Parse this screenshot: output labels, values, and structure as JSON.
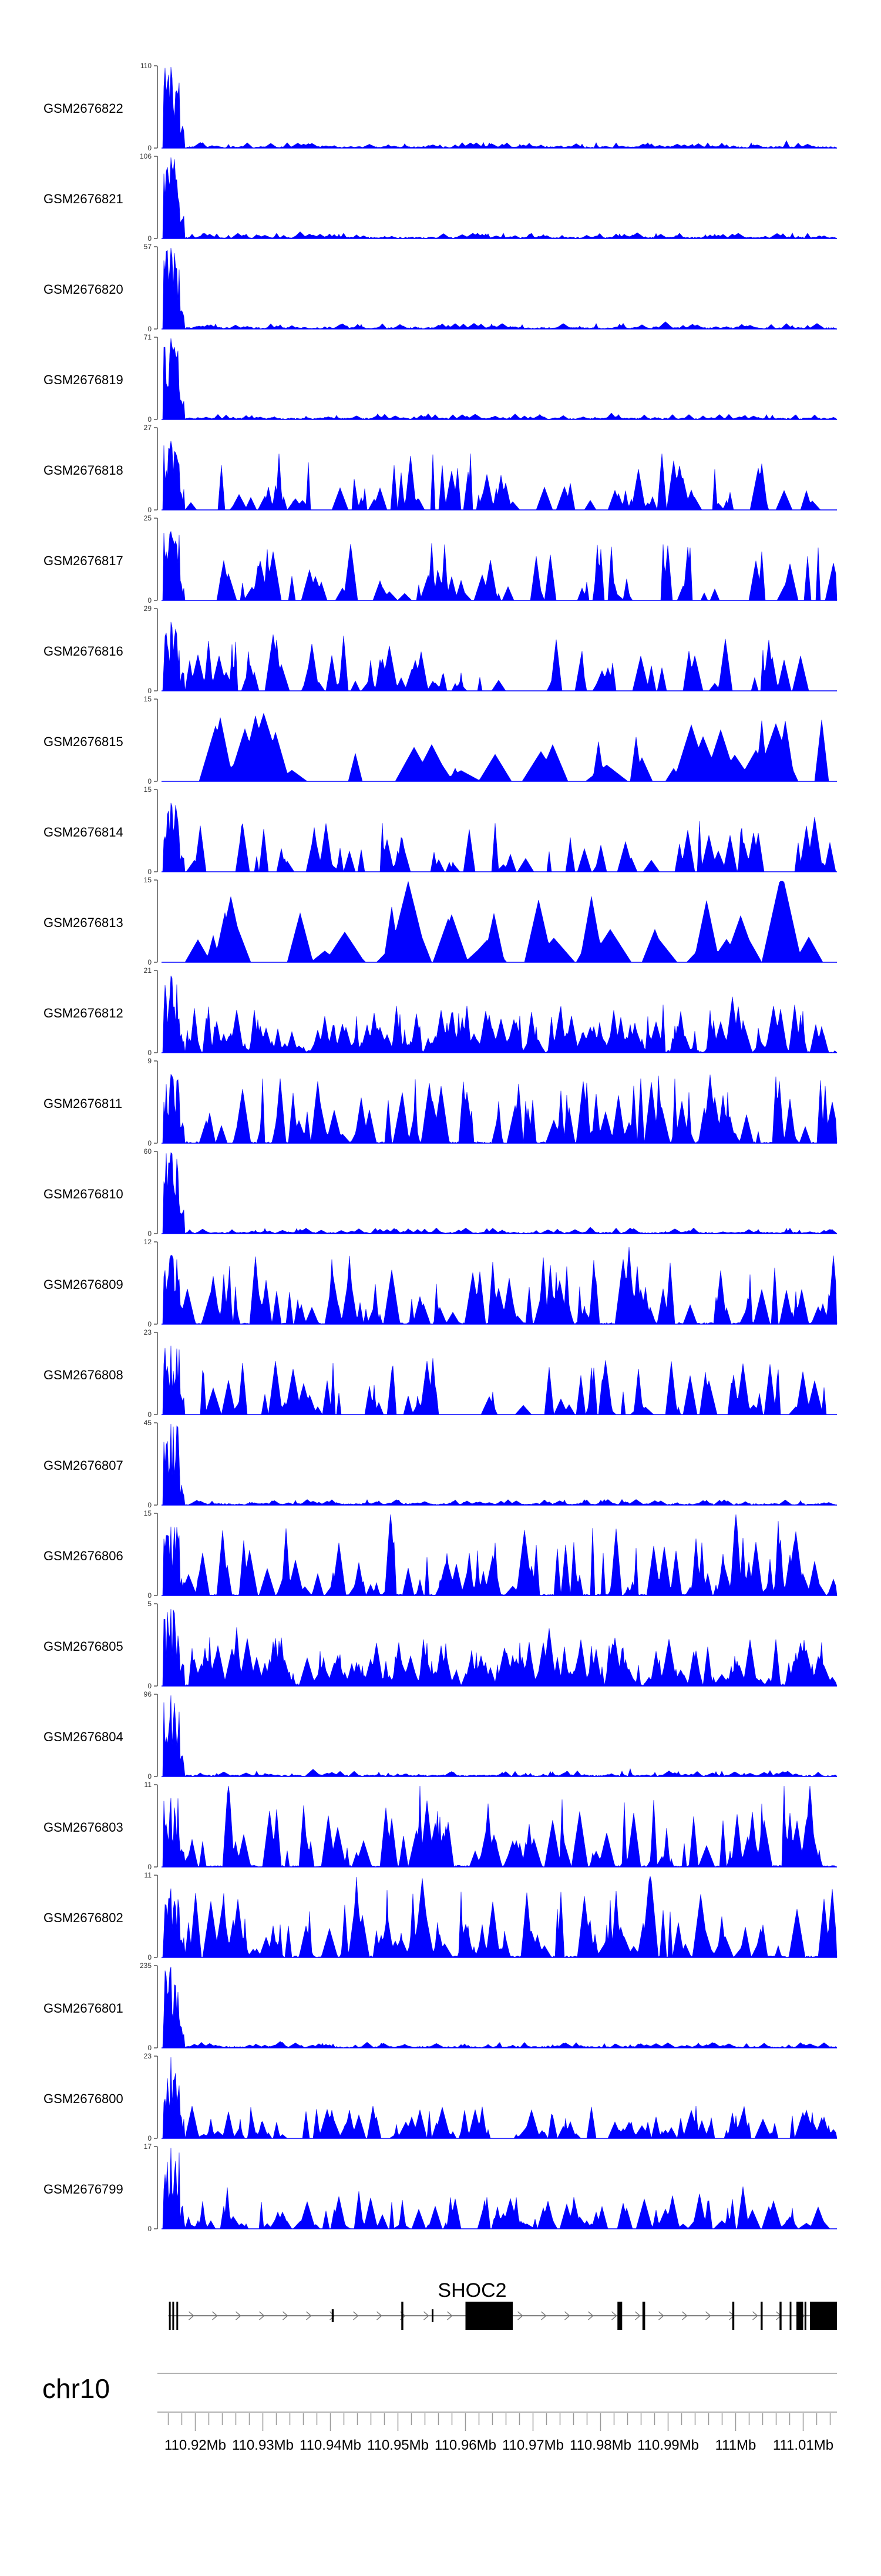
{
  "chart_data": {
    "type": "area",
    "title": "",
    "xlabel": "",
    "ylabel": "",
    "chromosome": "chr10",
    "x_range_mb": [
      110.915,
      111.015
    ],
    "x_ticks": [
      {
        "value": 110.92,
        "label": "110.92Mb"
      },
      {
        "value": 110.93,
        "label": "110.93Mb"
      },
      {
        "value": 110.94,
        "label": "110.94Mb"
      },
      {
        "value": 110.95,
        "label": "110.95Mb"
      },
      {
        "value": 110.96,
        "label": "110.96Mb"
      },
      {
        "value": 110.97,
        "label": "110.97Mb"
      },
      {
        "value": 110.98,
        "label": "110.98Mb"
      },
      {
        "value": 110.99,
        "label": "110.99Mb"
      },
      {
        "value": 111.0,
        "label": "111Mb"
      },
      {
        "value": 111.01,
        "label": "111.01Mb"
      }
    ],
    "fill_color": "#0000ff",
    "series": [
      {
        "name": "GSM2676822",
        "ymax": 110,
        "ymax_label": "110",
        "ymin_label": "0",
        "profile": "spike"
      },
      {
        "name": "GSM2676821",
        "ymax": 106,
        "ymax_label": "106",
        "ymin_label": "0",
        "profile": "spike"
      },
      {
        "name": "GSM2676820",
        "ymax": 57,
        "ymax_label": "57",
        "ymin_label": "0",
        "profile": "spike"
      },
      {
        "name": "GSM2676819",
        "ymax": 71,
        "ymax_label": "71",
        "ymin_label": "0",
        "profile": "spike"
      },
      {
        "name": "GSM2676818",
        "ymax": 27,
        "ymax_label": "27",
        "ymin_label": "0",
        "profile": "sparse"
      },
      {
        "name": "GSM2676817",
        "ymax": 25,
        "ymax_label": "25",
        "ymin_label": "0",
        "profile": "sparse"
      },
      {
        "name": "GSM2676816",
        "ymax": 29,
        "ymax_label": "29",
        "ymin_label": "0",
        "profile": "sparse"
      },
      {
        "name": "GSM2676815",
        "ymax": 15,
        "ymax_label": "15",
        "ymin_label": "0",
        "profile": "verysparse"
      },
      {
        "name": "GSM2676814",
        "ymax": 15,
        "ymax_label": "15",
        "ymin_label": "0",
        "profile": "sparse"
      },
      {
        "name": "GSM2676813",
        "ymax": 15,
        "ymax_label": "15",
        "ymin_label": "0",
        "profile": "verysparse"
      },
      {
        "name": "GSM2676812",
        "ymax": 21,
        "ymax_label": "21",
        "ymin_label": "0",
        "profile": "dense"
      },
      {
        "name": "GSM2676811",
        "ymax": 9,
        "ymax_label": "9",
        "ymin_label": "0",
        "profile": "medium"
      },
      {
        "name": "GSM2676810",
        "ymax": 60,
        "ymax_label": "60",
        "ymin_label": "0",
        "profile": "spike"
      },
      {
        "name": "GSM2676809",
        "ymax": 12,
        "ymax_label": "12",
        "ymin_label": "0",
        "profile": "medium"
      },
      {
        "name": "GSM2676808",
        "ymax": 23,
        "ymax_label": "23",
        "ymin_label": "0",
        "profile": "sparse"
      },
      {
        "name": "GSM2676807",
        "ymax": 45,
        "ymax_label": "45",
        "ymin_label": "0",
        "profile": "spike"
      },
      {
        "name": "GSM2676806",
        "ymax": 15,
        "ymax_label": "15",
        "ymin_label": "0",
        "profile": "medium"
      },
      {
        "name": "GSM2676805",
        "ymax": 5,
        "ymax_label": "5",
        "ymin_label": "0",
        "profile": "dense"
      },
      {
        "name": "GSM2676804",
        "ymax": 96,
        "ymax_label": "96",
        "ymin_label": "0",
        "profile": "spike"
      },
      {
        "name": "GSM2676803",
        "ymax": 11,
        "ymax_label": "11",
        "ymin_label": "0",
        "profile": "medium"
      },
      {
        "name": "GSM2676802",
        "ymax": 11,
        "ymax_label": "11",
        "ymin_label": "0",
        "profile": "medium"
      },
      {
        "name": "GSM2676801",
        "ymax": 235,
        "ymax_label": "235",
        "ymin_label": "0",
        "profile": "spike"
      },
      {
        "name": "GSM2676800",
        "ymax": 23,
        "ymax_label": "23",
        "ymin_label": "0",
        "profile": "spike_medium"
      },
      {
        "name": "GSM2676799",
        "ymax": 17,
        "ymax_label": "17",
        "ymin_label": "0",
        "profile": "spike_medium"
      }
    ],
    "gene_track": {
      "gene": "SHOC2",
      "strand": "+",
      "transcript_start_mb": 110.916,
      "transcript_end_mb": 111.015,
      "exons": [
        {
          "start": 110.9161,
          "end": 110.9163,
          "tall": true
        },
        {
          "start": 110.9166,
          "end": 110.9168,
          "tall": true
        },
        {
          "start": 110.9172,
          "end": 110.9174,
          "tall": true
        },
        {
          "start": 110.9402,
          "end": 110.9405,
          "tall": false
        },
        {
          "start": 110.9505,
          "end": 110.9508,
          "tall": true
        },
        {
          "start": 110.955,
          "end": 110.9552,
          "tall": false
        },
        {
          "start": 110.96,
          "end": 110.961,
          "tall": true
        },
        {
          "start": 110.961,
          "end": 110.967,
          "tall": true
        },
        {
          "start": 110.9825,
          "end": 110.9832,
          "tall": true
        },
        {
          "start": 110.9862,
          "end": 110.9866,
          "tall": true
        },
        {
          "start": 110.9995,
          "end": 110.9998,
          "tall": true
        },
        {
          "start": 111.0037,
          "end": 111.004,
          "tall": true
        },
        {
          "start": 111.0065,
          "end": 111.0068,
          "tall": true
        },
        {
          "start": 111.008,
          "end": 111.0082,
          "tall": true
        },
        {
          "start": 111.009,
          "end": 111.01,
          "tall": true
        },
        {
          "start": 111.0102,
          "end": 111.0104,
          "tall": true
        },
        {
          "start": 111.011,
          "end": 111.015,
          "tall": true
        }
      ]
    }
  }
}
